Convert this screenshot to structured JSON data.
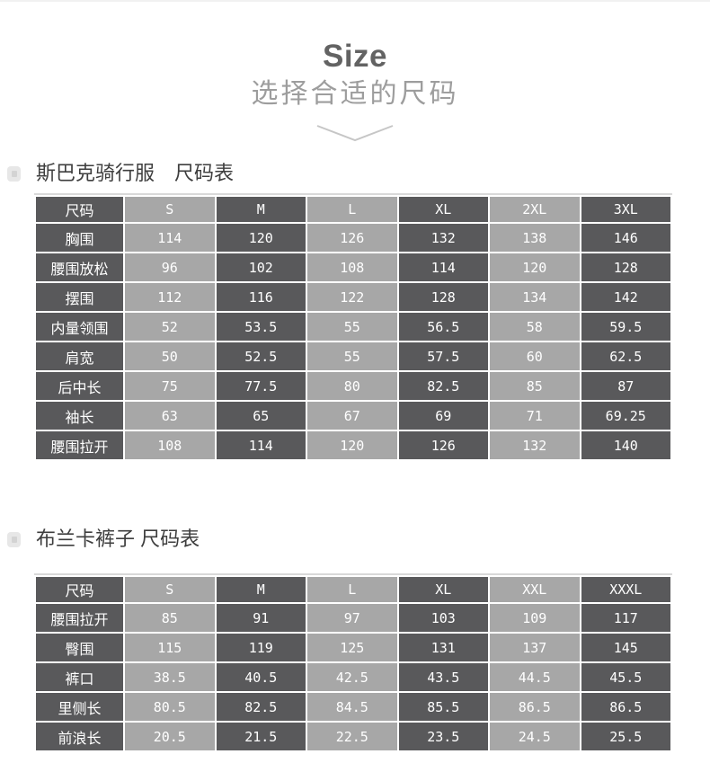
{
  "header": {
    "title": "Size",
    "subtitle": "选择合适的尺码",
    "chevron_icon": "chevron-down"
  },
  "colors": {
    "dark_cell": "#59595b",
    "light_cell": "#a7a7a7",
    "cell_text": "#ffffff",
    "title_text": "#636363",
    "subtitle_text": "#9d9d9d",
    "section_title_text": "#3e3e3e",
    "chevron": "#c6c6c6"
  },
  "sections": [
    {
      "title": "斯巴克骑行服　尺码表",
      "table": {
        "columns": [
          "尺码",
          "S",
          "M",
          "L",
          "XL",
          "2XL",
          "3XL"
        ],
        "rows": [
          {
            "label": "胸围",
            "values": [
              "114",
              "120",
              "126",
              "132",
              "138",
              "146"
            ]
          },
          {
            "label": "腰围放松",
            "values": [
              "96",
              "102",
              "108",
              "114",
              "120",
              "128"
            ]
          },
          {
            "label": "摆围",
            "values": [
              "112",
              "116",
              "122",
              "128",
              "134",
              "142"
            ]
          },
          {
            "label": "内量领围",
            "values": [
              "52",
              "53.5",
              "55",
              "56.5",
              "58",
              "59.5"
            ]
          },
          {
            "label": "肩宽",
            "values": [
              "50",
              "52.5",
              "55",
              "57.5",
              "60",
              "62.5"
            ]
          },
          {
            "label": "后中长",
            "values": [
              "75",
              "77.5",
              "80",
              "82.5",
              "85",
              "87"
            ]
          },
          {
            "label": "袖长",
            "values": [
              "63",
              "65",
              "67",
              "69",
              "71",
              "69.25"
            ]
          },
          {
            "label": "腰围拉开",
            "values": [
              "108",
              "114",
              "120",
              "126",
              "132",
              "140"
            ]
          }
        ]
      }
    },
    {
      "title": "布兰卡裤子 尺码表",
      "table": {
        "columns": [
          "尺码",
          "S",
          "M",
          "L",
          "XL",
          "XXL",
          "XXXL"
        ],
        "rows": [
          {
            "label": "腰围拉开",
            "values": [
              "85",
              "91",
              "97",
              "103",
              "109",
              "117"
            ]
          },
          {
            "label": "臀围",
            "values": [
              "115",
              "119",
              "125",
              "131",
              "137",
              "145"
            ]
          },
          {
            "label": "裤口",
            "values": [
              "38.5",
              "40.5",
              "42.5",
              "43.5",
              "44.5",
              "45.5"
            ]
          },
          {
            "label": "里侧长",
            "values": [
              "80.5",
              "82.5",
              "84.5",
              "85.5",
              "86.5",
              "86.5"
            ]
          },
          {
            "label": "前浪长",
            "values": [
              "20.5",
              "21.5",
              "22.5",
              "23.5",
              "24.5",
              "25.5"
            ]
          }
        ]
      }
    }
  ]
}
